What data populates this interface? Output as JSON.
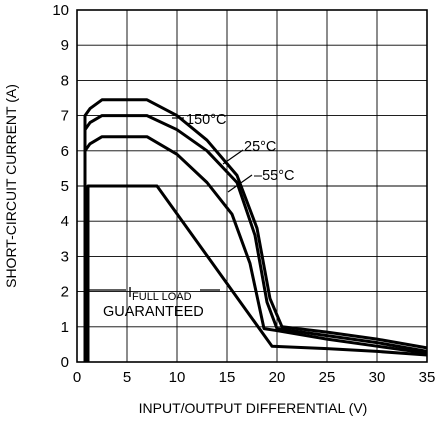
{
  "chart_data": {
    "type": "line",
    "xlabel": "INPUT/OUTPUT DIFFERENTIAL (V)",
    "ylabel": "SHORT-CIRCUIT CURRENT (A)",
    "xlim": [
      0,
      35
    ],
    "ylim": [
      0,
      10
    ],
    "x_ticks": [
      "0",
      "5",
      "10",
      "15",
      "20",
      "25",
      "30",
      "35"
    ],
    "y_ticks": [
      "0",
      "1",
      "2",
      "3",
      "4",
      "5",
      "6",
      "7",
      "8",
      "9",
      "10"
    ],
    "grid": true,
    "legend": "none",
    "line_color": "#000000",
    "series": [
      {
        "name": "150°C",
        "x": [
          0.8,
          0.8,
          1.3,
          2.5,
          7.0,
          10.0,
          13.0,
          16.0,
          18.0,
          19.3,
          20.5,
          25.0,
          30.0,
          35.0
        ],
        "y": [
          0,
          7.0,
          7.2,
          7.45,
          7.45,
          7.0,
          6.3,
          5.3,
          3.8,
          1.8,
          1.0,
          0.85,
          0.65,
          0.4
        ]
      },
      {
        "name": "25°C",
        "x": [
          0.8,
          0.8,
          1.3,
          2.5,
          7.0,
          10.0,
          13.0,
          16.0,
          17.8,
          19.0,
          20.0,
          25.0,
          30.0,
          35.0
        ],
        "y": [
          0,
          6.6,
          6.8,
          7.0,
          7.0,
          6.6,
          6.0,
          5.1,
          3.6,
          1.7,
          0.95,
          0.75,
          0.55,
          0.3
        ]
      },
      {
        "name": "–55°C",
        "x": [
          0.8,
          0.8,
          1.3,
          2.5,
          7.0,
          10.0,
          13.0,
          15.5,
          17.3,
          18.7,
          19.8,
          25.0,
          30.0,
          35.0
        ],
        "y": [
          0,
          6.0,
          6.2,
          6.4,
          6.4,
          5.9,
          5.1,
          4.2,
          2.8,
          0.95,
          0.9,
          0.65,
          0.45,
          0.25
        ]
      },
      {
        "name": "IFULL LOAD GUARANTEED",
        "x": [
          1.1,
          1.1,
          8.0,
          19.5,
          25.0,
          30.0,
          35.0
        ],
        "y": [
          0,
          5.0,
          5.0,
          0.45,
          0.38,
          0.3,
          0.2
        ]
      }
    ],
    "annotations": [
      {
        "text": "150°C"
      },
      {
        "text": "25°C"
      },
      {
        "text": "–55°C"
      },
      {
        "text_main": "I",
        "text_sub": "FULL LOAD",
        "text_line2": "GUARANTEED"
      }
    ]
  }
}
